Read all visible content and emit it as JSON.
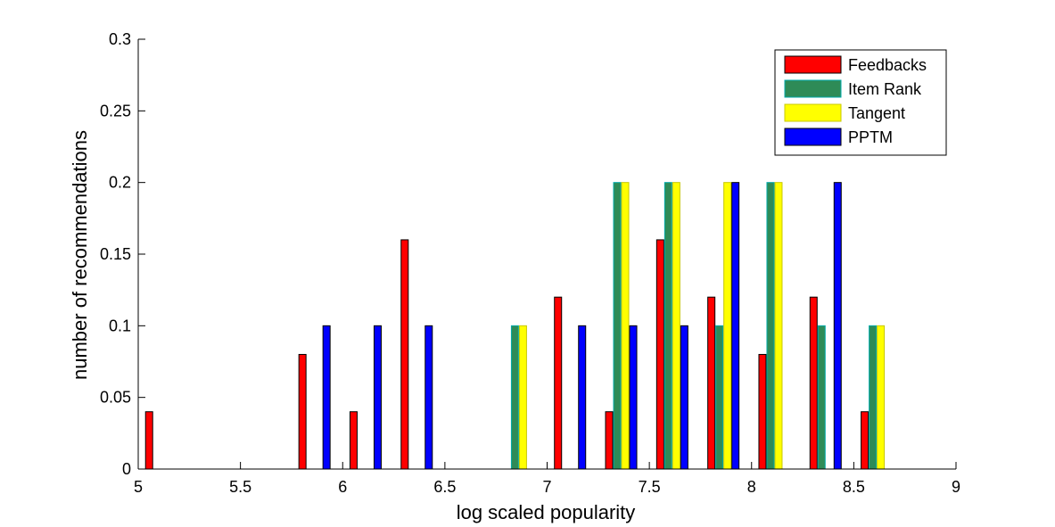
{
  "chart_data": {
    "type": "bar",
    "title": "",
    "xlabel": "log scaled popularity",
    "ylabel": "number of recommendations",
    "xlim": [
      5,
      9
    ],
    "ylim": [
      0,
      0.3
    ],
    "xticks": [
      "5",
      "5.5",
      "6",
      "6.5",
      "7",
      "7.5",
      "8",
      "8.5",
      "9"
    ],
    "yticks": [
      "0",
      "0.05",
      "0.1",
      "0.15",
      "0.2",
      "0.25",
      "0.3"
    ],
    "xtick_values": [
      5,
      5.5,
      6,
      6.5,
      7,
      7.5,
      8,
      8.5,
      9
    ],
    "ytick_values": [
      0,
      0.05,
      0.1,
      0.15,
      0.2,
      0.25,
      0.3
    ],
    "bin_centers": [
      5.11,
      5.36,
      5.61,
      5.86,
      6.11,
      6.36,
      6.61,
      6.86,
      7.11,
      7.36,
      7.61,
      7.86,
      8.11,
      8.36,
      8.61,
      8.86
    ],
    "grid": false,
    "legend_position": "top-right",
    "series": [
      {
        "name": "Feedbacks",
        "color": "#ff0000",
        "edge": "#000000",
        "values": [
          0.04,
          0,
          0,
          0.08,
          0.04,
          0.16,
          0,
          0,
          0.12,
          0.04,
          0.16,
          0.12,
          0.08,
          0.12,
          0.04,
          0
        ]
      },
      {
        "name": "Item Rank",
        "color": "#2e8b57",
        "edge": "#00aaaa",
        "values": [
          0,
          0,
          0,
          0,
          0,
          0,
          0,
          0.1,
          0,
          0.2,
          0.2,
          0.1,
          0.2,
          0.1,
          0.1,
          0
        ]
      },
      {
        "name": "Tangent",
        "color": "#ffff00",
        "edge": "#c8c800",
        "values": [
          0,
          0,
          0,
          0,
          0,
          0,
          0,
          0.1,
          0,
          0.2,
          0.2,
          0.2,
          0.2,
          0,
          0.1,
          0
        ]
      },
      {
        "name": "PPTM",
        "color": "#0000ff",
        "edge": "#000000",
        "values": [
          0,
          0,
          0,
          0.1,
          0.1,
          0.1,
          0,
          0,
          0.1,
          0.1,
          0.1,
          0.2,
          0,
          0.2,
          0,
          0
        ]
      }
    ]
  }
}
